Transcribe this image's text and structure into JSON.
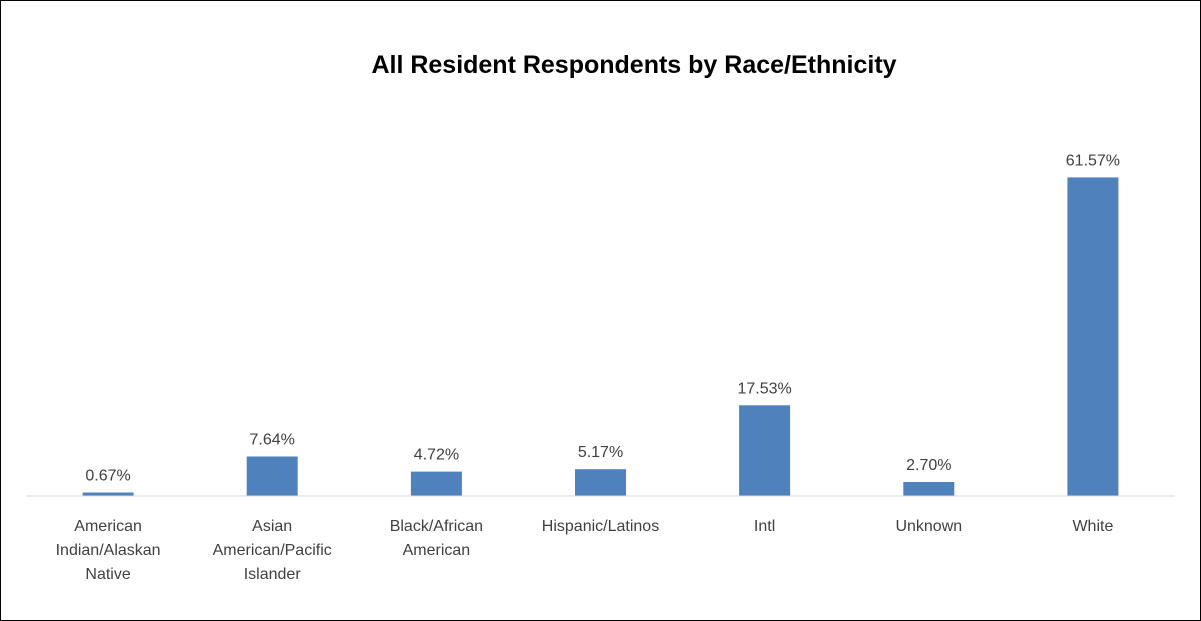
{
  "chart_data": {
    "type": "bar",
    "title": "All Resident Respondents by Race/Ethnicity",
    "categories": [
      [
        "American",
        "Indian/Alaskan",
        "Native"
      ],
      [
        "Asian",
        "American/Pacific",
        "Islander"
      ],
      [
        "Black/African",
        "American"
      ],
      [
        "Hispanic/Latinos"
      ],
      [
        "Intl"
      ],
      [
        "Unknown"
      ],
      [
        "White"
      ]
    ],
    "values": [
      0.67,
      7.64,
      4.72,
      5.17,
      17.53,
      2.7,
      61.57
    ],
    "data_labels": [
      "0.67%",
      "7.64%",
      "4.72%",
      "5.17%",
      "17.53%",
      "2.70%",
      "61.57%"
    ],
    "bar_color": "#4f81bd",
    "axis_color": "#d9d9d9",
    "label_color": "#404040",
    "grid": false,
    "legend": "none",
    "ylim": [
      0,
      65
    ]
  }
}
